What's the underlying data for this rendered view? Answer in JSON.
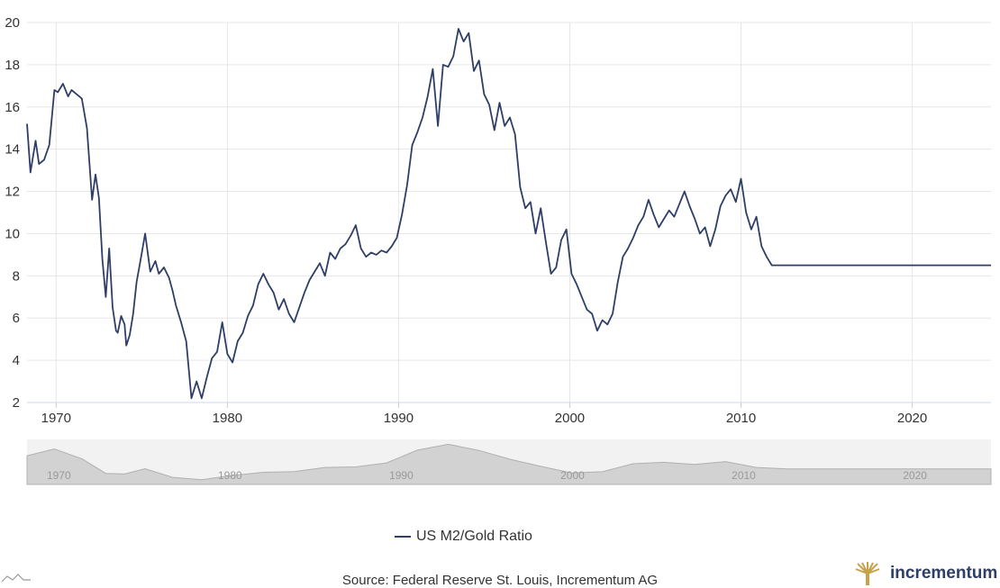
{
  "chart_data": {
    "type": "line",
    "title": "",
    "xlabel": "",
    "ylabel": "",
    "xlim": [
      1968.3,
      2024.6
    ],
    "ylim": [
      2,
      20
    ],
    "yticks": [
      2,
      4,
      6,
      8,
      10,
      12,
      14,
      16,
      18,
      20
    ],
    "xticks": [
      1970,
      1980,
      1990,
      2000,
      2010,
      2020
    ],
    "xtick_labels": [
      "1970",
      "1980",
      "1990",
      "2000",
      "2010",
      "2020"
    ],
    "ytick_labels": [
      "2",
      "4",
      "6",
      "8",
      "10",
      "12",
      "14",
      "16",
      "18",
      "20"
    ],
    "navigator_labels": [
      "1970",
      "1980",
      "1990",
      "2000",
      "2010",
      "2020"
    ],
    "grid": true,
    "series": [
      {
        "name": "US M2/Gold Ratio",
        "color": "#2e3e66",
        "x": [
          1968.3,
          1968.5,
          1968.8,
          1969.0,
          1969.3,
          1969.6,
          1969.9,
          1970.1,
          1970.4,
          1970.7,
          1970.9,
          1971.2,
          1971.5,
          1971.8,
          1972.1,
          1972.3,
          1972.5,
          1972.7,
          1972.9,
          1973.1,
          1973.3,
          1973.5,
          1973.6,
          1973.8,
          1974.0,
          1974.1,
          1974.3,
          1974.5,
          1974.7,
          1974.9,
          1975.2,
          1975.5,
          1975.8,
          1976.0,
          1976.3,
          1976.6,
          1976.8,
          1977.0,
          1977.3,
          1977.6,
          1977.9,
          1978.2,
          1978.5,
          1978.8,
          1979.1,
          1979.4,
          1979.7,
          1980.0,
          1980.3,
          1980.6,
          1980.9,
          1981.2,
          1981.5,
          1981.8,
          1982.1,
          1982.4,
          1982.7,
          1983.0,
          1983.3,
          1983.6,
          1983.9,
          1984.2,
          1984.5,
          1984.8,
          1985.1,
          1985.4,
          1985.7,
          1986.0,
          1986.3,
          1986.6,
          1986.9,
          1987.2,
          1987.5,
          1987.8,
          1988.1,
          1988.4,
          1988.7,
          1989.0,
          1989.3,
          1989.6,
          1989.9,
          1990.2,
          1990.5,
          1990.8,
          1991.1,
          1991.4,
          1991.7,
          1992.0,
          1992.3,
          1992.6,
          1992.9,
          1993.2,
          1993.5,
          1993.8,
          1994.1,
          1994.4,
          1994.7,
          1995.0,
          1995.3,
          1995.6,
          1995.9,
          1996.2,
          1996.5,
          1996.8,
          1997.1,
          1997.4,
          1997.7,
          1998.0,
          1998.3,
          1998.6,
          1998.9,
          1999.2,
          1999.5,
          1999.8,
          2000.1,
          2000.4,
          2000.7,
          2001.0,
          2001.3,
          2001.6,
          2001.9,
          2002.2,
          2002.5,
          2002.8,
          2003.1,
          2003.4,
          2003.7,
          2004.0,
          2004.3,
          2004.6,
          2004.9,
          2005.2,
          2005.5,
          2005.8,
          2006.1,
          2006.4,
          2006.7,
          2007.0,
          2007.3,
          2007.6,
          2007.9,
          2008.2,
          2008.5,
          2008.8,
          2009.1,
          2009.4,
          2009.7,
          2010.0,
          2010.3,
          2010.6,
          2010.9,
          2011.2,
          2011.5,
          2011.8,
          2012.1,
          2012.4,
          2012.7,
          2013.0,
          2013.3,
          2013.6,
          2013.9,
          2014.2,
          2014.5,
          2014.8,
          2015.1,
          2015.4,
          2015.7,
          2016.0,
          2016.3,
          2016.6,
          2016.9,
          2017.2,
          2017.5,
          2017.8,
          2018.1,
          2018.4,
          2018.7,
          2019.0,
          2019.3,
          2019.6,
          2019.9,
          2020.2,
          2020.5,
          2020.8,
          2021.1,
          2021.4,
          2021.7,
          2022.0,
          2022.3,
          2022.6,
          2022.9,
          2023.2,
          2023.5,
          2023.8,
          2024.1,
          2024.4,
          2024.6
        ],
        "values": [
          15.2,
          12.9,
          14.4,
          13.3,
          13.5,
          14.2,
          16.8,
          16.7,
          17.1,
          16.5,
          16.8,
          16.6,
          16.4,
          15.0,
          11.6,
          12.8,
          11.7,
          8.8,
          7.0,
          9.3,
          6.5,
          5.4,
          5.3,
          6.1,
          5.7,
          4.7,
          5.2,
          6.2,
          7.7,
          8.6,
          10.0,
          8.2,
          8.7,
          8.1,
          8.4,
          7.9,
          7.3,
          6.6,
          5.8,
          4.9,
          2.2,
          3.0,
          2.2,
          3.2,
          4.1,
          4.4,
          5.8,
          4.3,
          3.9,
          4.9,
          5.3,
          6.1,
          6.6,
          7.6,
          8.1,
          7.6,
          7.2,
          6.4,
          6.9,
          6.2,
          5.8,
          6.5,
          7.2,
          7.8,
          8.2,
          8.6,
          8.0,
          9.1,
          8.8,
          9.3,
          9.5,
          9.9,
          10.4,
          9.3,
          8.9,
          9.1,
          9.0,
          9.2,
          9.1,
          9.4,
          9.8,
          10.9,
          12.3,
          14.2,
          14.8,
          15.5,
          16.5,
          17.8,
          15.1,
          18.0,
          17.9,
          18.4,
          19.7,
          19.1,
          19.5,
          17.7,
          18.2,
          16.6,
          16.1,
          14.9,
          16.2,
          15.1,
          15.5,
          14.7,
          12.2,
          11.2,
          11.5,
          10.0,
          11.2,
          9.6,
          8.1,
          8.4,
          9.7,
          10.2,
          8.1,
          7.6,
          7.0,
          6.4,
          6.2,
          5.4,
          5.9,
          5.7,
          6.2,
          7.7,
          8.9,
          9.3,
          9.8,
          10.4,
          10.8,
          11.6,
          10.9,
          10.3,
          10.7,
          11.1,
          10.8,
          11.4,
          12.0,
          11.3,
          10.7,
          10.0,
          10.3,
          9.4,
          10.2,
          11.3,
          11.8,
          12.1,
          11.5,
          12.6,
          11.0,
          10.2,
          10.8,
          9.4,
          8.9,
          8.5,
          8.5,
          8.5,
          8.5,
          8.5,
          8.5,
          8.5,
          8.5,
          8.5,
          8.5,
          8.5,
          8.5,
          8.5,
          8.5,
          8.5,
          8.5,
          8.5,
          8.5,
          8.5,
          8.5,
          8.5,
          8.5,
          8.5,
          8.5,
          8.5,
          8.5,
          8.5,
          8.5,
          8.5,
          8.5,
          8.5,
          8.5,
          8.5,
          8.5,
          8.5,
          8.5,
          8.5,
          8.5,
          8.5,
          8.5,
          8.5,
          8.5,
          8.5,
          8.5
        ]
      }
    ],
    "legend": "bottom-center"
  },
  "legend": {
    "label": "US M2/Gold Ratio"
  },
  "footer": {
    "source": "Source: Federal Reserve St. Louis, Incrementum AG",
    "brand": "incrementum"
  },
  "colors": {
    "line": "#2e3e66",
    "grid": "#e6e6e6",
    "navigator_fill": "#d2d2d2",
    "brand": "#c8a24a"
  }
}
